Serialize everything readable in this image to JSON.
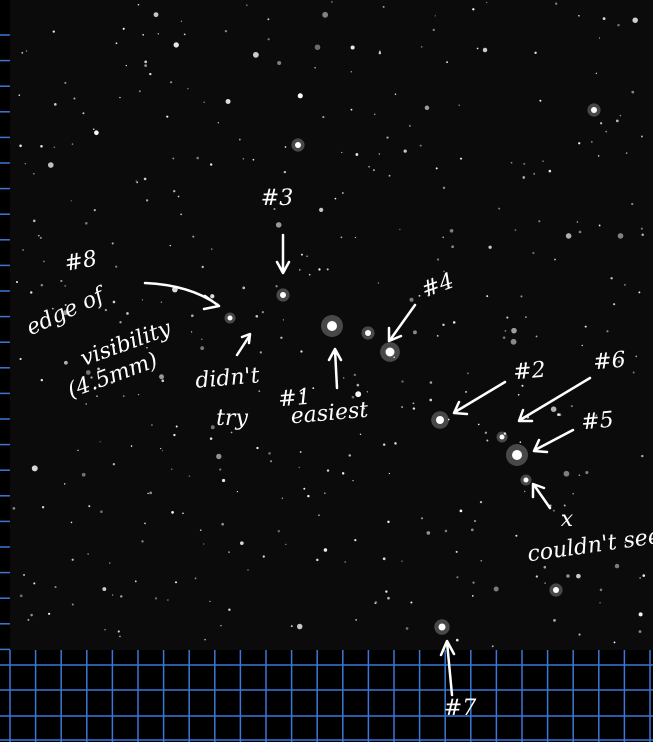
{
  "annotations": [
    {
      "lines": [
        "#8"
      ]
    },
    {
      "lines": [
        "edge of",
        "visibility",
        "(4.5mm)"
      ]
    },
    {
      "lines": [
        "#3"
      ]
    },
    {
      "lines": [
        "didn't",
        "try"
      ]
    },
    {
      "lines": [
        "#1",
        "easiest"
      ]
    },
    {
      "lines": [
        "#4"
      ]
    },
    {
      "lines": [
        "#2"
      ]
    },
    {
      "lines": [
        "#6"
      ]
    },
    {
      "lines": [
        "#5"
      ]
    },
    {
      "lines": [
        "x",
        "couldn't see"
      ]
    },
    {
      "lines": [
        "#7"
      ]
    }
  ]
}
